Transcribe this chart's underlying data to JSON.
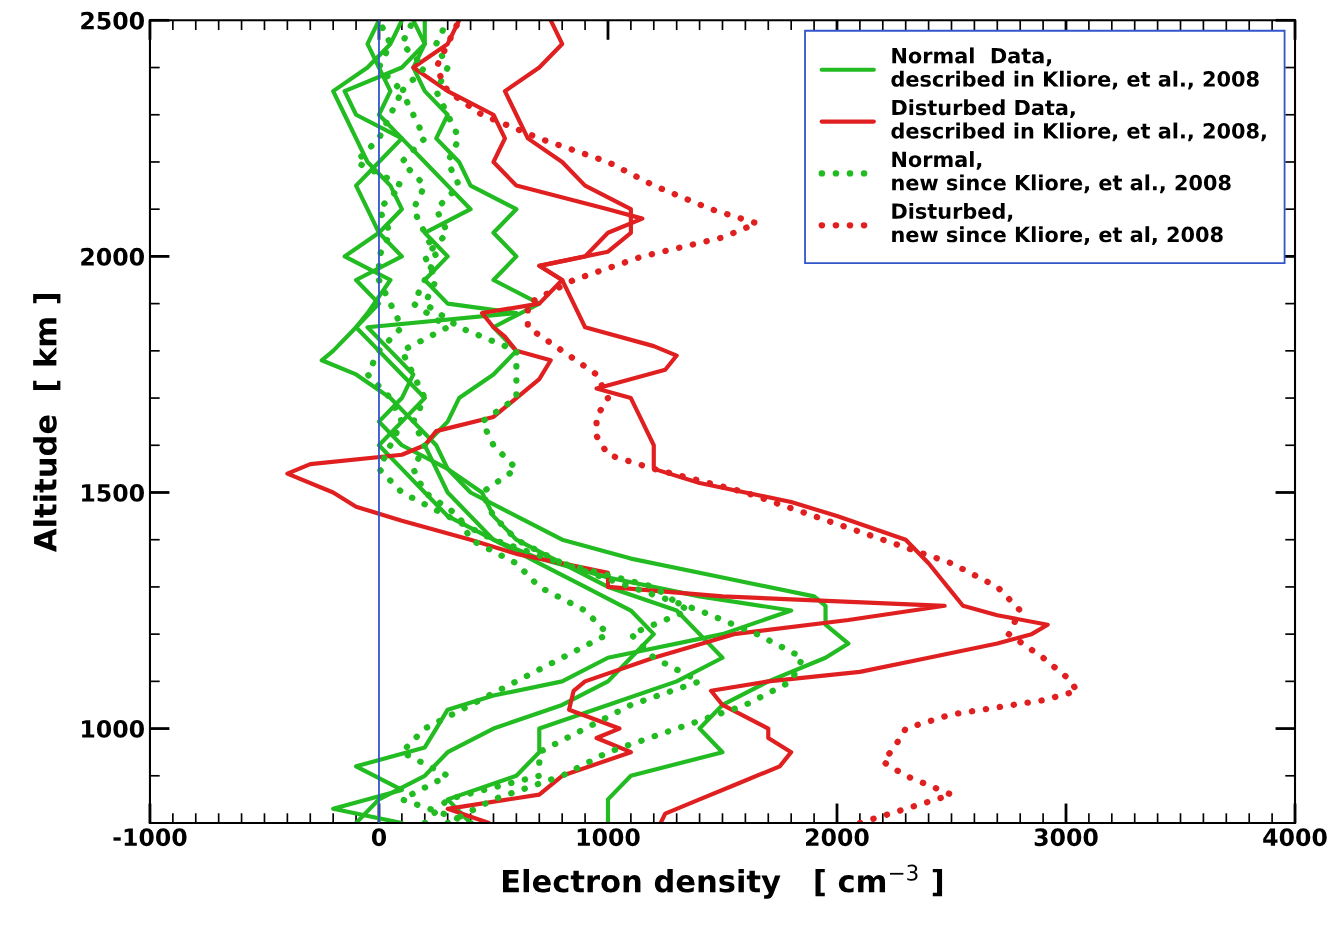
{
  "chart_data": {
    "type": "line",
    "xlabel": "Electron density   [ cm$^{−3}$ ]",
    "ylabel": "Altitude  [ km ]",
    "xlim": [
      -1000,
      4000
    ],
    "ylim": [
      800,
      2500
    ],
    "xticks": [
      -1000,
      {
        "value": -900,
        "label": null
      },
      {
        "value": -800,
        "label": null
      },
      {
        "value": -700,
        "label": null
      },
      {
        "value": -600,
        "label": null
      },
      {
        "value": -500,
        "label": null
      },
      {
        "value": -400,
        "label": null
      },
      {
        "value": -300,
        "label": null
      },
      {
        "value": -200,
        "label": null
      },
      {
        "value": -100,
        "label": null
      },
      0,
      {
        "value": 100,
        "label": null
      },
      {
        "value": 200,
        "label": null
      },
      {
        "value": 300,
        "label": null
      },
      {
        "value": 400,
        "label": null
      },
      {
        "value": 500,
        "label": null
      },
      {
        "value": 600,
        "label": null
      },
      {
        "value": 700,
        "label": null
      },
      {
        "value": 800,
        "label": null
      },
      {
        "value": 900,
        "label": null
      },
      1000,
      {
        "value": 1100,
        "label": null
      },
      {
        "value": 1200,
        "label": null
      },
      {
        "value": 1300,
        "label": null
      },
      {
        "value": 1400,
        "label": null
      },
      {
        "value": 1500,
        "label": null
      },
      {
        "value": 1600,
        "label": null
      },
      {
        "value": 1700,
        "label": null
      },
      {
        "value": 1800,
        "label": null
      },
      {
        "value": 1900,
        "label": null
      },
      2000,
      {
        "value": 2100,
        "label": null
      },
      {
        "value": 2200,
        "label": null
      },
      {
        "value": 2300,
        "label": null
      },
      {
        "value": 2400,
        "label": null
      },
      {
        "value": 2500,
        "label": null
      },
      {
        "value": 2600,
        "label": null
      },
      {
        "value": 2700,
        "label": null
      },
      {
        "value": 2800,
        "label": null
      },
      {
        "value": 2900,
        "label": null
      },
      3000,
      {
        "value": 3100,
        "label": null
      },
      {
        "value": 3200,
        "label": null
      },
      {
        "value": 3300,
        "label": null
      },
      {
        "value": 3400,
        "label": null
      },
      {
        "value": 3500,
        "label": null
      },
      {
        "value": 3600,
        "label": null
      },
      {
        "value": 3700,
        "label": null
      },
      {
        "value": 3800,
        "label": null
      },
      {
        "value": 3900,
        "label": null
      },
      4000
    ],
    "yticks": [
      {
        "value": 800,
        "label": null
      },
      {
        "value": 900,
        "label": null
      },
      1000,
      {
        "value": 1100,
        "label": null
      },
      {
        "value": 1200,
        "label": null
      },
      {
        "value": 1300,
        "label": null
      },
      {
        "value": 1400,
        "label": null
      },
      1500,
      {
        "value": 1600,
        "label": null
      },
      {
        "value": 1700,
        "label": null
      },
      {
        "value": 1800,
        "label": null
      },
      {
        "value": 1900,
        "label": null
      },
      2000,
      {
        "value": 2100,
        "label": null
      },
      {
        "value": 2200,
        "label": null
      },
      {
        "value": 2300,
        "label": null
      },
      {
        "value": 2400,
        "label": null
      },
      2500
    ],
    "grid": false,
    "legend": "top right",
    "ref_lines": [
      {
        "axis": "x",
        "value": 0,
        "color": "#3355cc"
      }
    ],
    "series": [
      {
        "name": "Normal  Data,\ndescribed in Kliore, et al., 2008",
        "color": "#22bb22",
        "line_style": "solid",
        "x": [
          1000,
          1000,
          1100,
          1500,
          1400,
          1500,
          1700,
          1950,
          2050,
          1950,
          1950,
          1900,
          1500,
          1100,
          800,
          600,
          400,
          300,
          250,
          150,
          50,
          -100,
          -250,
          -200,
          -100,
          -50,
          50,
          -150,
          0,
          100,
          50,
          -50,
          -100,
          -150,
          -200,
          -50,
          50,
          100
        ],
        "values": [
          800,
          850,
          900,
          950,
          1000,
          1050,
          1100,
          1150,
          1180,
          1220,
          1260,
          1280,
          1320,
          1360,
          1400,
          1450,
          1500,
          1550,
          1600,
          1650,
          1700,
          1750,
          1780,
          1800,
          1850,
          1880,
          1950,
          2000,
          2050,
          2100,
          2150,
          2200,
          2250,
          2300,
          2350,
          2400,
          2450,
          2500
        ]
      },
      {
        "color": "#22bb22",
        "line_style": "solid",
        "x": [
          100,
          -200,
          100,
          -100,
          200,
          250,
          300,
          500,
          800,
          1000,
          1500,
          1800,
          1400,
          1000,
          700,
          500,
          400,
          300,
          250,
          200,
          300,
          350,
          500,
          600,
          500,
          700,
          500,
          600,
          500,
          600,
          400,
          350,
          250,
          300,
          200,
          150,
          200,
          200
        ],
        "values": [
          800,
          830,
          870,
          920,
          960,
          1000,
          1040,
          1070,
          1100,
          1150,
          1200,
          1250,
          1280,
          1320,
          1360,
          1400,
          1450,
          1500,
          1550,
          1600,
          1650,
          1700,
          1750,
          1800,
          1850,
          1900,
          1950,
          2000,
          2050,
          2100,
          2150,
          2200,
          2250,
          2300,
          2350,
          2400,
          2450,
          2500
        ]
      },
      {
        "color": "#22bb22",
        "line_style": "solid",
        "x": [
          400,
          300,
          600,
          700,
          700,
          1000,
          1300,
          1500,
          1400,
          1300,
          1000,
          800,
          600,
          500,
          450,
          300,
          100,
          0,
          100,
          150,
          50,
          -50,
          600,
          300,
          200,
          300,
          200,
          400,
          300,
          200,
          100,
          -100,
          -150,
          100,
          200,
          150
        ],
        "values": [
          800,
          850,
          900,
          950,
          1000,
          1050,
          1100,
          1150,
          1200,
          1250,
          1300,
          1350,
          1400,
          1450,
          1500,
          1550,
          1600,
          1650,
          1700,
          1750,
          1800,
          1850,
          1880,
          1900,
          1950,
          2000,
          2050,
          2100,
          2150,
          2200,
          2250,
          2300,
          2350,
          2400,
          2450,
          2500
        ]
      },
      {
        "color": "#22bb22",
        "line_style": "solid",
        "x": [
          -100,
          0,
          200,
          300,
          500,
          800,
          1000,
          1100,
          1200,
          1100,
          900,
          700,
          500,
          300,
          200,
          100,
          0,
          100,
          200,
          100,
          0,
          -100,
          0,
          -100,
          100,
          0,
          -50,
          -100,
          0,
          100,
          0,
          50,
          0,
          -50,
          0
        ],
        "values": [
          800,
          850,
          900,
          950,
          1000,
          1050,
          1100,
          1150,
          1200,
          1250,
          1300,
          1350,
          1400,
          1450,
          1500,
          1550,
          1600,
          1650,
          1700,
          1750,
          1800,
          1850,
          1900,
          1950,
          2000,
          2050,
          2100,
          2150,
          2200,
          2250,
          2300,
          2350,
          2400,
          2450,
          2500
        ]
      },
      {
        "name": "Disturbed Data,\ndescribed in Kliore, et al., 2008,",
        "color": "#e02020",
        "line_style": "solid",
        "x": [
          480,
          300,
          700,
          800,
          1100,
          950,
          1050,
          830,
          850,
          900,
          1200,
          1550,
          2050,
          2470,
          1500,
          1000,
          1000,
          600,
          400,
          100,
          -100,
          -200,
          -400,
          -300,
          100,
          200,
          250,
          500,
          600,
          700,
          750,
          600,
          550,
          500,
          450,
          700,
          800,
          700,
          900,
          1000,
          1150,
          1000,
          600,
          500,
          550,
          500,
          300,
          150,
          300,
          350
        ],
        "values": [
          800,
          830,
          860,
          900,
          950,
          980,
          1000,
          1040,
          1080,
          1100,
          1150,
          1200,
          1230,
          1260,
          1280,
          1300,
          1330,
          1370,
          1400,
          1440,
          1470,
          1500,
          1540,
          1560,
          1580,
          1600,
          1630,
          1660,
          1700,
          1740,
          1780,
          1800,
          1830,
          1850,
          1880,
          1900,
          1950,
          1980,
          2000,
          2050,
          2080,
          2100,
          2150,
          2200,
          2250,
          2300,
          2350,
          2400,
          2450,
          2500
        ]
      },
      {
        "color": "#e02020",
        "line_style": "solid",
        "x": [
          1230,
          1250,
          1400,
          1550,
          1750,
          1800,
          1700,
          1700,
          1500,
          1450,
          1700,
          2100,
          2400,
          2700,
          2850,
          2920,
          2700,
          2550,
          2500,
          2450,
          2400,
          2300,
          2000,
          1800,
          1400,
          1200,
          1200,
          1150,
          1100,
          950,
          1250,
          1300,
          1200,
          900,
          850,
          800,
          700,
          1000,
          1100,
          1100,
          900,
          800,
          650,
          600,
          550,
          700,
          800,
          750
        ],
        "values": [
          800,
          820,
          850,
          880,
          920,
          950,
          980,
          1000,
          1050,
          1080,
          1100,
          1120,
          1150,
          1180,
          1200,
          1220,
          1240,
          1260,
          1290,
          1320,
          1350,
          1400,
          1450,
          1480,
          1520,
          1550,
          1600,
          1650,
          1700,
          1720,
          1760,
          1790,
          1810,
          1850,
          1900,
          1950,
          1980,
          2010,
          2050,
          2100,
          2150,
          2200,
          2250,
          2300,
          2350,
          2400,
          2450,
          2500
        ]
      },
      {
        "name": "Normal,\nnew since Kliore, et al., 2008",
        "color": "#22bb22",
        "line_style": "dotted",
        "x": [
          300,
          500,
          800,
          1000,
          1300,
          1600,
          1800,
          1850,
          1650,
          1400,
          1100,
          800,
          600,
          500,
          450,
          600,
          500,
          450,
          600,
          600,
          600,
          350,
          200,
          250,
          200,
          300,
          250,
          350,
          300,
          350,
          300,
          250,
          300,
          250,
          300
        ],
        "values": [
          800,
          850,
          900,
          950,
          1000,
          1050,
          1100,
          1150,
          1200,
          1250,
          1300,
          1350,
          1400,
          1450,
          1500,
          1550,
          1600,
          1650,
          1700,
          1750,
          1800,
          1850,
          1900,
          1950,
          2000,
          2050,
          2100,
          2150,
          2200,
          2250,
          2300,
          2350,
          2400,
          2450,
          2500
        ]
      },
      {
        "color": "#22bb22",
        "line_style": "dotted",
        "x": [
          200,
          300,
          700,
          700,
          900,
          1100,
          1400,
          1200,
          1100,
          1350,
          1200,
          800,
          500,
          300,
          100,
          0,
          50,
          100,
          50,
          -50,
          0,
          100,
          50,
          0,
          0,
          50,
          0,
          100,
          -100,
          0,
          50,
          100,
          0,
          50,
          0
        ],
        "values": [
          800,
          850,
          900,
          950,
          1000,
          1050,
          1100,
          1150,
          1200,
          1250,
          1300,
          1350,
          1400,
          1450,
          1500,
          1550,
          1600,
          1650,
          1700,
          1750,
          1800,
          1850,
          1900,
          1950,
          2000,
          2050,
          2100,
          2150,
          2200,
          2250,
          2300,
          2350,
          2400,
          2450,
          2500
        ]
      },
      {
        "color": "#22bb22",
        "line_style": "dotted",
        "x": [
          400,
          100,
          300,
          100,
          200,
          400,
          600,
          800,
          1000,
          900,
          700,
          600,
          400,
          350,
          200,
          150,
          200,
          150,
          200,
          150,
          100,
          300,
          150,
          200,
          250,
          200,
          150,
          200,
          100,
          200,
          150,
          100,
          200,
          100,
          150
        ],
        "values": [
          800,
          850,
          900,
          950,
          1000,
          1050,
          1100,
          1150,
          1200,
          1250,
          1300,
          1350,
          1400,
          1450,
          1500,
          1550,
          1600,
          1650,
          1700,
          1750,
          1800,
          1850,
          1900,
          1950,
          2000,
          2050,
          2100,
          2150,
          2200,
          2250,
          2300,
          2350,
          2400,
          2450,
          2500
        ]
      },
      {
        "name": "Disturbed,\nnew since Kliore, et al, 2008",
        "color": "#e02020",
        "line_style": "dotted",
        "x": [
          2100,
          2300,
          2500,
          2300,
          2200,
          2250,
          2300,
          2500,
          2900,
          3050,
          3000,
          2900,
          2750,
          2800,
          2700,
          2500,
          2200,
          1900,
          1600,
          1200,
          1000,
          950,
          950,
          1000,
          950,
          800,
          650,
          650,
          850,
          1150,
          1500,
          1650,
          1450,
          1200,
          1000,
          700,
          450,
          300,
          250,
          300,
          350
        ],
        "values": [
          800,
          830,
          860,
          900,
          930,
          960,
          1000,
          1030,
          1060,
          1080,
          1110,
          1150,
          1200,
          1250,
          1300,
          1350,
          1400,
          1450,
          1500,
          1550,
          1580,
          1620,
          1660,
          1700,
          1750,
          1800,
          1850,
          1900,
          1950,
          2000,
          2040,
          2070,
          2100,
          2150,
          2200,
          2250,
          2300,
          2350,
          2400,
          2450,
          2500
        ]
      }
    ]
  }
}
